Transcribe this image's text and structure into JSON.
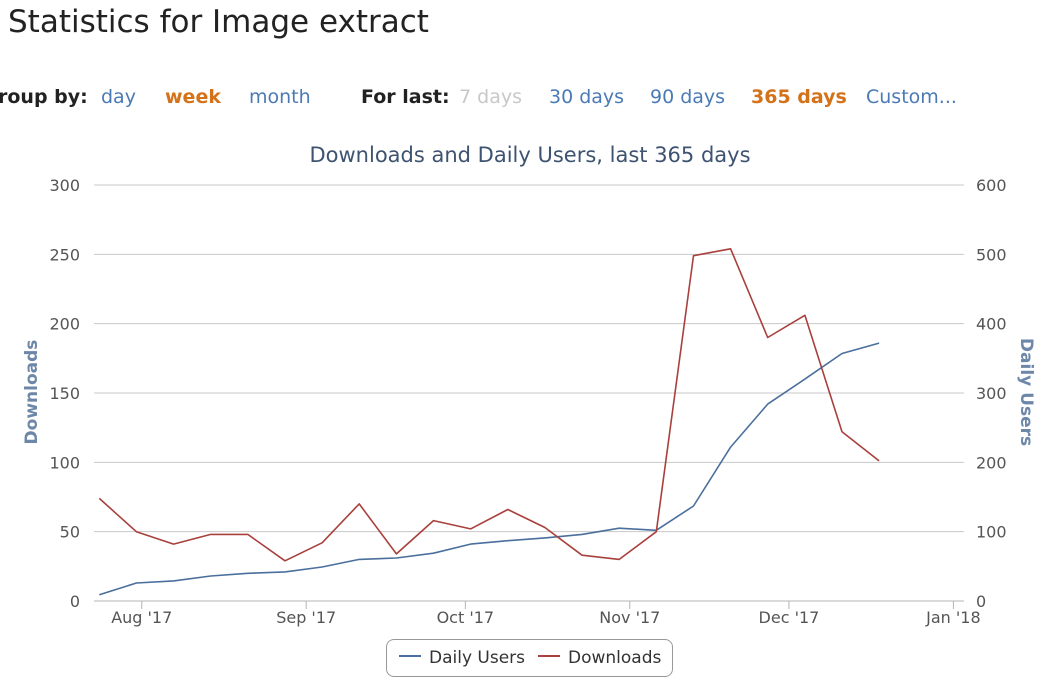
{
  "page_title": "Statistics for Image extract",
  "controls": {
    "group_by_label": "roup by:",
    "group_options": [
      {
        "label": "day",
        "state": "link"
      },
      {
        "label": "week",
        "state": "active"
      },
      {
        "label": "month",
        "state": "link"
      }
    ],
    "for_last_label": "For last:",
    "range_options": [
      {
        "label": "7 days",
        "state": "disabled"
      },
      {
        "label": "30 days",
        "state": "link"
      },
      {
        "label": "90 days",
        "state": "link"
      },
      {
        "label": "365 days",
        "state": "active"
      },
      {
        "label": "Custom...",
        "state": "link"
      }
    ]
  },
  "colors": {
    "downloads": "#a8403c",
    "daily_users": "#4a6f9c",
    "axis_title": "#6d87a8",
    "grid": "#c8c8c8",
    "link": "#4a7ab5",
    "active": "#d4721a"
  },
  "chart_data": {
    "type": "line",
    "title": "Downloads and Daily Users, last 365 days",
    "xlabel": "",
    "x_ticks": [
      "Aug '17",
      "Sep '17",
      "Oct '17",
      "Nov '17",
      "Dec '17",
      "Jan '18"
    ],
    "x_tick_dates": [
      "2017-08-01",
      "2017-09-01",
      "2017-10-01",
      "2017-11-01",
      "2017-12-01",
      "2018-01-01"
    ],
    "xlim": [
      "2017-07-23",
      "2018-01-03"
    ],
    "y_left": {
      "label": "Downloads",
      "range": [
        0,
        300
      ],
      "ticks": [
        0,
        50,
        100,
        150,
        200,
        250,
        300
      ]
    },
    "y_right": {
      "label": "Daily Users",
      "range": [
        0,
        600
      ],
      "ticks": [
        0,
        100,
        200,
        300,
        400,
        500,
        600
      ]
    },
    "grid": true,
    "legend_position": "bottom-center",
    "x": [
      "2017-07-24",
      "2017-07-31",
      "2017-08-07",
      "2017-08-14",
      "2017-08-21",
      "2017-08-28",
      "2017-09-04",
      "2017-09-11",
      "2017-09-18",
      "2017-09-25",
      "2017-10-02",
      "2017-10-09",
      "2017-10-16",
      "2017-10-23",
      "2017-10-30",
      "2017-11-06",
      "2017-11-13",
      "2017-11-20",
      "2017-11-27",
      "2017-12-04",
      "2017-12-11",
      "2017-12-18"
    ],
    "series": [
      {
        "name": "Daily Users",
        "axis": "right",
        "color": "#4a6f9c",
        "values": [
          9,
          26,
          29,
          36,
          40,
          42,
          49,
          60,
          62,
          69,
          82,
          87,
          91,
          96,
          105,
          102,
          137,
          222,
          284,
          320,
          357,
          372
        ]
      },
      {
        "name": "Downloads",
        "axis": "left",
        "color": "#a8403c",
        "values": [
          74,
          50,
          41,
          48,
          48,
          29,
          42,
          70,
          34,
          58,
          52,
          66,
          53,
          33,
          30,
          50,
          249,
          254,
          190,
          206,
          122,
          101
        ]
      }
    ]
  }
}
